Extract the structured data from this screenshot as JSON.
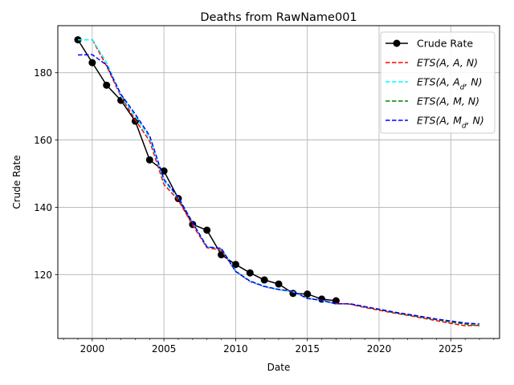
{
  "chart_data": {
    "type": "line",
    "title": "Deaths from RawName001",
    "xlabel": "Date",
    "ylabel": "Crude Rate",
    "xlim": [
      1997.6,
      2028.4
    ],
    "ylim": [
      101.0,
      194.0
    ],
    "xticks": [
      2000,
      2005,
      2010,
      2015,
      2020,
      2025
    ],
    "yticks": [
      120,
      140,
      160,
      180
    ],
    "grid": true,
    "legend_position": "top-right",
    "series": [
      {
        "name": "Crude Rate",
        "color": "#000000",
        "style": "solid-marker",
        "x": [
          1999,
          2000,
          2001,
          2002,
          2003,
          2004,
          2005,
          2006,
          2007,
          2008,
          2009,
          2010,
          2011,
          2012,
          2013,
          2014,
          2015,
          2016,
          2017
        ],
        "y": [
          189.8,
          183.0,
          176.3,
          171.8,
          165.6,
          154.1,
          150.8,
          142.6,
          134.9,
          133.2,
          125.9,
          123.0,
          120.5,
          118.4,
          117.2,
          114.4,
          114.2,
          112.7,
          112.2
        ]
      },
      {
        "name": "ETS(A, A, N)",
        "legend_label": {
          "prefix": "ETS(A, A, N)",
          "sub": "",
          "suffix": ""
        },
        "color": "#ff0000",
        "style": "dashed",
        "x": [
          2000,
          2001,
          2002,
          2003,
          2004,
          2005,
          2006,
          2007,
          2008,
          2009,
          2010,
          2011,
          2012,
          2013,
          2014,
          2015,
          2016,
          2017,
          2018,
          2019,
          2020,
          2021,
          2022,
          2023,
          2024,
          2025,
          2026,
          2027
        ],
        "y": [
          189.9,
          182.0,
          172.9,
          166.0,
          159.7,
          146.8,
          142.1,
          134.7,
          128.0,
          127.3,
          121.0,
          117.9,
          116.4,
          115.5,
          115.0,
          113.0,
          112.4,
          111.4,
          111.2,
          110.2,
          109.4,
          108.6,
          107.9,
          107.1,
          106.3,
          105.5,
          104.8,
          104.9
        ]
      },
      {
        "name": "ETS(A, A_d, N)",
        "legend_label": {
          "prefix": "ETS(A, A",
          "sub": "d",
          "suffix": ", N)"
        },
        "color": "#00ffff",
        "style": "dashed",
        "x": [
          1999,
          2000,
          2001,
          2002,
          2003,
          2004,
          2005,
          2006,
          2007,
          2008,
          2009,
          2010,
          2011,
          2012,
          2013,
          2014,
          2015,
          2016,
          2017
        ],
        "y": [
          189.8,
          189.8,
          183.1,
          173.1,
          167.1,
          160.6,
          147.8,
          142.9,
          135.4,
          128.3,
          127.7,
          121.2,
          118.0,
          116.4,
          115.5,
          114.9,
          112.9,
          112.3,
          111.2
        ]
      },
      {
        "name": "ETS(A, M, N)",
        "legend_label": {
          "prefix": "ETS(A, M, N)",
          "sub": "",
          "suffix": ""
        },
        "color": "#008000",
        "style": "dashed",
        "x": [
          2018,
          2019,
          2020,
          2021,
          2022,
          2023,
          2024,
          2025,
          2026,
          2027
        ],
        "y": [
          111.2,
          110.4,
          109.6,
          108.7,
          108.0,
          107.3,
          106.6,
          105.9,
          105.3,
          104.8
        ]
      },
      {
        "name": "ETS(A, M_d, N)",
        "legend_label": {
          "prefix": "ETS(A, M",
          "sub": "d",
          "suffix": ", N)"
        },
        "color": "#0000ff",
        "style": "dashed",
        "x": [
          1999,
          2000,
          2001,
          2002,
          2003,
          2004,
          2005,
          2006,
          2007,
          2008,
          2009,
          2010,
          2011,
          2012,
          2013,
          2014,
          2015,
          2016,
          2017,
          2018,
          2019,
          2020,
          2021,
          2022,
          2023,
          2024,
          2025,
          2026,
          2027
        ],
        "y": [
          185.3,
          185.4,
          182.3,
          173.6,
          167.7,
          161.3,
          148.3,
          143.0,
          135.4,
          128.2,
          127.8,
          120.9,
          118.1,
          116.5,
          115.6,
          115.0,
          112.9,
          112.3,
          111.3,
          111.3,
          110.5,
          109.7,
          108.9,
          108.2,
          107.5,
          106.8,
          106.2,
          105.6,
          105.3
        ]
      }
    ]
  }
}
